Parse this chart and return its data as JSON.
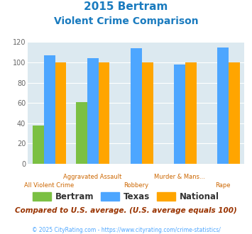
{
  "title_line1": "2015 Bertram",
  "title_line2": "Violent Crime Comparison",
  "cat_line1": [
    "",
    "Aggravated Assault",
    "",
    "Murder & Mans...",
    ""
  ],
  "cat_line2": [
    "All Violent Crime",
    "",
    "Robbery",
    "",
    "Rape"
  ],
  "bertram": [
    38,
    61,
    0,
    0,
    0
  ],
  "texas": [
    107,
    104,
    114,
    98,
    115
  ],
  "national": [
    100,
    100,
    100,
    100,
    100
  ],
  "bertram_color": "#7bc043",
  "texas_color": "#4da6ff",
  "national_color": "#ffa500",
  "bg_color": "#dce9f0",
  "title_color": "#1a7bbf",
  "xlabel_top_color": "#cc6600",
  "xlabel_bot_color": "#cc6600",
  "ylabel_color": "#666666",
  "ylim": [
    0,
    120
  ],
  "yticks": [
    0,
    20,
    40,
    60,
    80,
    100,
    120
  ],
  "note": "Compared to U.S. average. (U.S. average equals 100)",
  "footnote": "© 2025 CityRating.com - https://www.cityrating.com/crime-statistics/",
  "note_color": "#993300",
  "footnote_color": "#4da6ff",
  "legend_text_color": "#333333"
}
